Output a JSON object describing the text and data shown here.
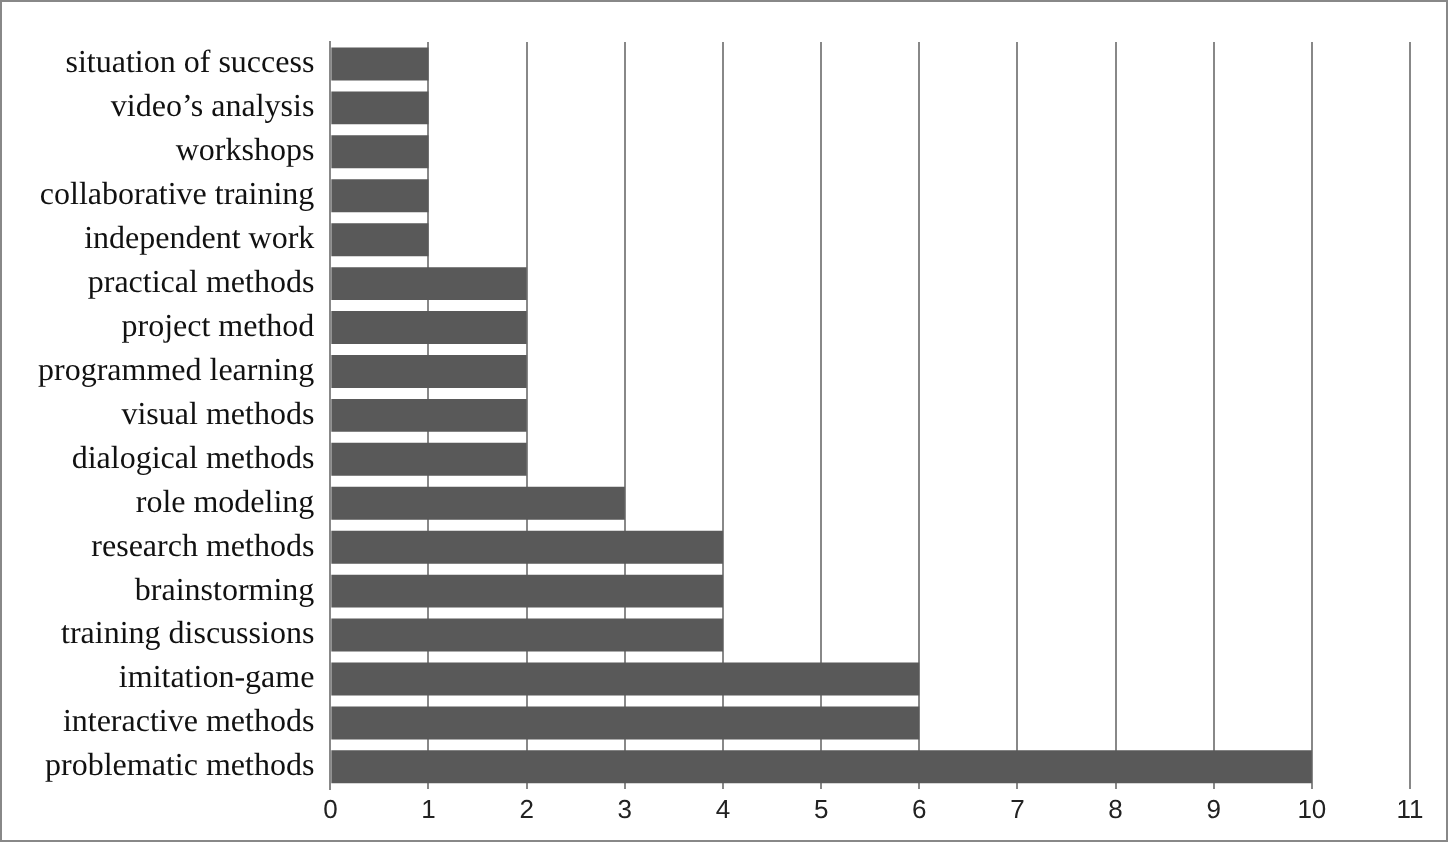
{
  "chart_data": {
    "type": "bar",
    "orientation": "horizontal",
    "categories": [
      "situation of success",
      "video’s analysis",
      "workshops",
      "collaborative training",
      "independent work",
      "practical methods",
      "project method",
      "programmed learning",
      "visual methods",
      "dialogical methods",
      "role modeling",
      "research methods",
      "brainstorming",
      "training discussions",
      "imitation-game",
      "interactive methods",
      "problematic methods"
    ],
    "values": [
      1,
      1,
      1,
      1,
      1,
      2,
      2,
      2,
      2,
      2,
      3,
      4,
      4,
      4,
      6,
      6,
      10
    ],
    "color": "#595959",
    "xlim": [
      0,
      11
    ],
    "xticks": [
      0,
      1,
      2,
      3,
      4,
      5,
      6,
      7,
      8,
      9,
      10,
      11
    ],
    "grid": "x",
    "legend": false
  }
}
